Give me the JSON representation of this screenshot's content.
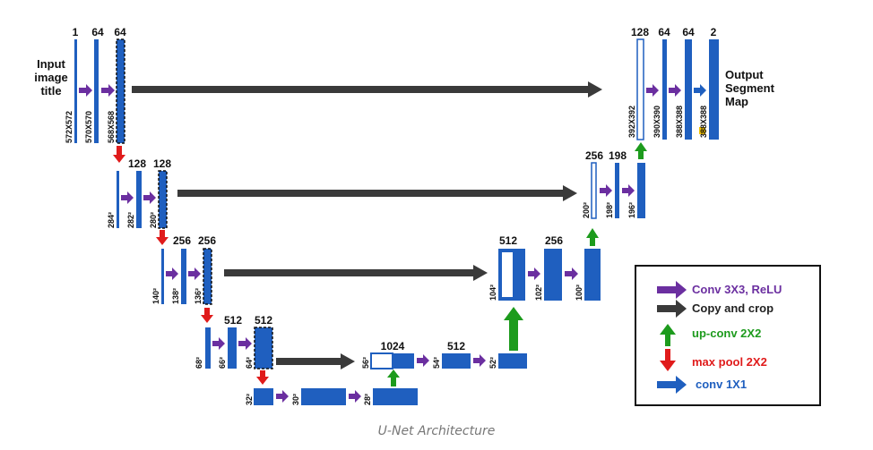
{
  "diagram": {
    "input_label": [
      "Input",
      "image",
      "title"
    ],
    "output_label": [
      "Output",
      "Segment",
      "Map"
    ],
    "caption": "U-Net Architecture",
    "channels": {
      "in_1": "1",
      "in_2": "64",
      "in_3": "64",
      "l2_1": "128",
      "l2_2": "128",
      "l3_1": "256",
      "l3_2": "256",
      "l4_1": "512",
      "l4_2": "512",
      "b_1": "1024",
      "b_2": "512",
      "u4_1": "512",
      "u4_2": "256",
      "u3_1": "256",
      "u3_2": "198",
      "u1_1": "128",
      "u1_2": "64",
      "u1_3": "64",
      "u1_4": "2"
    },
    "dims": {
      "d1a": "572X572",
      "d1b": "570X570",
      "d1c": "568X568",
      "d2a": "284²",
      "d2b": "282²",
      "d2c": "280²",
      "d3a": "140²",
      "d3b": "138²",
      "d3c": "136²",
      "d4a": "68²",
      "d4b": "66²",
      "d4c": "64²",
      "d5a": "32²",
      "d5b": "30²",
      "d5c": "28²",
      "u5a": "56²",
      "u5b": "54²",
      "u5c": "52²",
      "u4a": "104²",
      "u4b": "102²",
      "u4c": "100²",
      "u3a": "200²",
      "u3b": "198²",
      "u3c": "196²",
      "u1a": "392X392",
      "u1b": "390X390",
      "u1c": "388X388",
      "u1d": "388X388"
    }
  },
  "legend": {
    "items": [
      {
        "label": "Conv 3X3, ReLU",
        "color": "#6b2fa0"
      },
      {
        "label": "Copy and crop",
        "color": "#3a3a3a"
      },
      {
        "label": "up-conv 2X2",
        "color": "#1d9b1d"
      },
      {
        "label": "max pool 2X2",
        "color": "#e01b1b"
      },
      {
        "label": "conv 1X1",
        "color": "#1f5fbf"
      }
    ]
  },
  "colors": {
    "block": "#1f5fbf",
    "conv_arrow": "#6b2fa0",
    "copy_arrow": "#3a3a3a",
    "up_arrow": "#1d9b1d",
    "pool_arrow": "#e01b1b",
    "conv1x1_arrow": "#1f5fbf"
  }
}
